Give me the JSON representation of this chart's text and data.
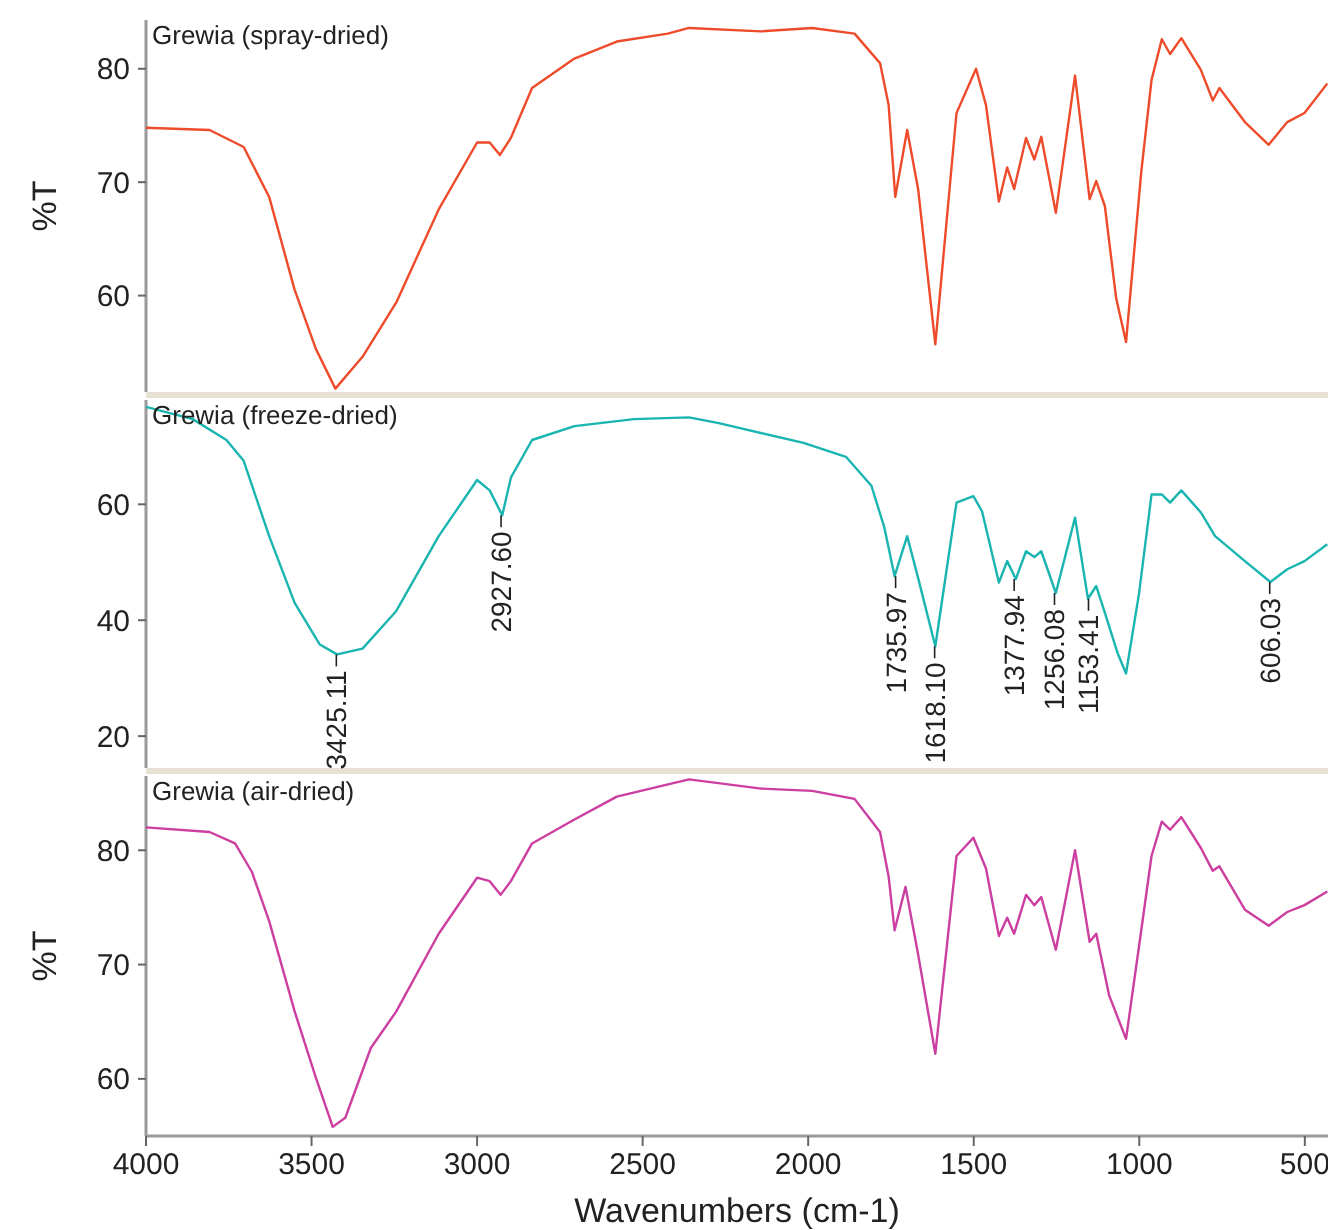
{
  "chart_data": [
    {
      "type": "line",
      "title": "Grewia (spray-dried)",
      "ylabel": "%T",
      "xlim": [
        4000,
        430
      ],
      "ylim": [
        51.5,
        84.3
      ],
      "yticks": [
        60,
        70,
        80
      ],
      "tick_labels": "y",
      "grid": false,
      "series": [
        {
          "color": "#ee4b2b",
          "x": [
            4000,
            3808,
            3705,
            3628,
            3551,
            3487,
            3428,
            3346,
            3244,
            3116,
            3000,
            2962,
            2931,
            2898,
            2834,
            2706,
            2578,
            2424,
            2360,
            2142,
            1988,
            1860,
            1783,
            1757,
            1737,
            1701,
            1668,
            1616,
            1552,
            1493,
            1463,
            1424,
            1399,
            1378,
            1342,
            1317,
            1296,
            1252,
            1194,
            1150,
            1130,
            1104,
            1070,
            1040,
            994,
            963,
            932,
            907,
            873,
            814,
            778,
            758,
            681,
            609,
            553,
            501,
            432
          ],
          "values": [
            74.8,
            74.6,
            73.1,
            68.7,
            60.5,
            55.3,
            51.8,
            54.6,
            59.4,
            67.6,
            73.5,
            73.5,
            72.4,
            73.9,
            78.3,
            80.9,
            82.4,
            83.1,
            83.6,
            83.3,
            83.6,
            83.1,
            80.5,
            76.8,
            68.7,
            74.6,
            69.4,
            55.7,
            76.1,
            80.0,
            76.8,
            68.3,
            71.3,
            69.4,
            73.9,
            72.0,
            74.0,
            67.3,
            79.4,
            68.5,
            70.1,
            67.9,
            59.8,
            55.9,
            70.9,
            79.0,
            82.6,
            81.3,
            82.7,
            79.9,
            77.2,
            78.3,
            75.3,
            73.3,
            75.3,
            76.1,
            78.7
          ]
        }
      ]
    },
    {
      "type": "line",
      "title": "Grewia (freeze-dried)",
      "xlim": [
        4000,
        430
      ],
      "ylim": [
        14.5,
        78
      ],
      "yticks": [
        20,
        40,
        60
      ],
      "tick_labels": "y",
      "grid": false,
      "series": [
        {
          "color": "#1ab5b0",
          "x": [
            4000,
            3859,
            3757,
            3705,
            3628,
            3551,
            3475,
            3423,
            3346,
            3244,
            3116,
            3000,
            2962,
            2924,
            2898,
            2834,
            2706,
            2526,
            2360,
            2270,
            2014,
            1886,
            1809,
            1770,
            1739,
            1701,
            1668,
            1616,
            1552,
            1501,
            1475,
            1424,
            1399,
            1373,
            1342,
            1317,
            1296,
            1252,
            1194,
            1155,
            1130,
            1104,
            1066,
            1040,
            1001,
            963,
            932,
            907,
            873,
            814,
            771,
            681,
            604,
            553,
            501,
            432
          ],
          "values": [
            76.8,
            74.7,
            71.1,
            67.5,
            54.5,
            43.0,
            35.8,
            34.1,
            35.1,
            41.6,
            54.5,
            64.2,
            62.4,
            58.1,
            64.6,
            71.1,
            73.5,
            74.7,
            75.0,
            74.0,
            70.6,
            68.2,
            63.2,
            56.0,
            47.6,
            54.5,
            47.3,
            35.5,
            60.3,
            61.4,
            58.8,
            46.5,
            50.2,
            47.1,
            51.9,
            50.9,
            51.9,
            44.7,
            57.7,
            43.7,
            45.9,
            41.3,
            34.4,
            30.8,
            44.5,
            61.7,
            61.7,
            60.3,
            62.4,
            58.6,
            54.5,
            50.2,
            46.6,
            48.8,
            50.2,
            53.1
          ]
        }
      ],
      "annotations": [
        {
          "text": "3425.11",
          "x": 3425.11,
          "y": 34.1
        },
        {
          "text": "2927.60",
          "x": 2927.6,
          "y": 58.1
        },
        {
          "text": "1735.97",
          "x": 1735.97,
          "y": 47.6
        },
        {
          "text": "1618.10",
          "x": 1618.1,
          "y": 35.5
        },
        {
          "text": "1377.94",
          "x": 1377.94,
          "y": 47.1
        },
        {
          "text": "1256.08",
          "x": 1256.08,
          "y": 44.7
        },
        {
          "text": "1153.41",
          "x": 1153.41,
          "y": 43.7
        },
        {
          "text": "606.03",
          "x": 606.03,
          "y": 46.6
        }
      ]
    },
    {
      "type": "line",
      "title": "Grewia (air-dried)",
      "xlabel": "Wavenumbers (cm-1)",
      "ylabel": "%T",
      "xlim": [
        4000,
        430
      ],
      "xticks": [
        4000,
        3500,
        3000,
        2500,
        2000,
        1500,
        1000,
        500
      ],
      "ylim": [
        55,
        86.5
      ],
      "yticks": [
        60,
        70,
        80
      ],
      "grid": false,
      "series": [
        {
          "color": "#cc3fa0",
          "x": [
            4000,
            3808,
            3731,
            3680,
            3628,
            3551,
            3487,
            3436,
            3398,
            3321,
            3244,
            3116,
            3000,
            2962,
            2929,
            2898,
            2834,
            2706,
            2578,
            2360,
            2142,
            1988,
            1860,
            1783,
            1757,
            1739,
            1706,
            1668,
            1616,
            1552,
            1501,
            1463,
            1424,
            1399,
            1378,
            1342,
            1317,
            1296,
            1252,
            1194,
            1150,
            1130,
            1091,
            1040,
            994,
            963,
            932,
            907,
            873,
            814,
            778,
            758,
            681,
            609,
            553,
            501,
            432
          ],
          "values": [
            82.0,
            81.6,
            80.6,
            78.1,
            73.8,
            65.9,
            60.1,
            55.8,
            56.6,
            62.7,
            65.9,
            72.7,
            77.6,
            77.3,
            76.1,
            77.3,
            80.6,
            82.7,
            84.7,
            86.2,
            85.4,
            85.2,
            84.5,
            81.6,
            77.7,
            73.0,
            76.8,
            70.9,
            62.2,
            79.5,
            81.1,
            78.4,
            72.5,
            74.1,
            72.7,
            76.1,
            75.2,
            75.9,
            71.3,
            80.0,
            72.0,
            72.7,
            67.3,
            63.5,
            73.0,
            79.5,
            82.5,
            81.8,
            82.9,
            80.2,
            78.2,
            78.6,
            74.8,
            73.4,
            74.6,
            75.2,
            76.4
          ]
        }
      ]
    }
  ]
}
